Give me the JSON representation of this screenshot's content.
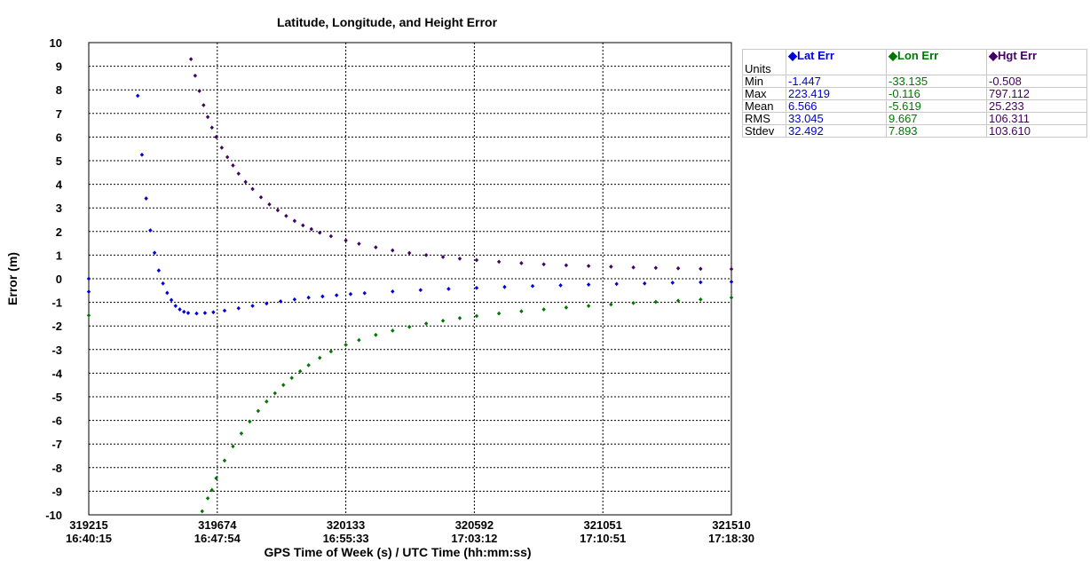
{
  "chart_data": {
    "type": "scatter",
    "title": "Latitude, Longitude, and Height Error",
    "xlabel": "GPS Time of Week (s) / UTC Time (hh:mm:ss)",
    "ylabel": "Error (m)",
    "xlim": [
      319215,
      321510
    ],
    "ylim": [
      -10,
      10
    ],
    "yticks": [
      10,
      9,
      8,
      7,
      6,
      5,
      4,
      3,
      2,
      1,
      0,
      -1,
      -2,
      -3,
      -4,
      -5,
      -6,
      -7,
      -8,
      -9,
      -10
    ],
    "xticks": [
      {
        "gps": "319215",
        "utc": "16:40:15"
      },
      {
        "gps": "319674",
        "utc": "16:47:54"
      },
      {
        "gps": "320133",
        "utc": "16:55:33"
      },
      {
        "gps": "320592",
        "utc": "17:03:12"
      },
      {
        "gps": "321051",
        "utc": "17:10:51"
      },
      {
        "gps": "321510",
        "utc": "17:18:30"
      }
    ],
    "grid": true,
    "series": [
      {
        "name": "Lat Err",
        "color": "#0000dd",
        "points": [
          [
            319215,
            0.0
          ],
          [
            319215,
            -0.55
          ],
          [
            319390,
            7.75
          ],
          [
            319405,
            5.25
          ],
          [
            319420,
            3.4
          ],
          [
            319435,
            2.05
          ],
          [
            319450,
            1.1
          ],
          [
            319465,
            0.35
          ],
          [
            319480,
            -0.2
          ],
          [
            319495,
            -0.6
          ],
          [
            319510,
            -0.9
          ],
          [
            319525,
            -1.15
          ],
          [
            319540,
            -1.3
          ],
          [
            319555,
            -1.4
          ],
          [
            319570,
            -1.45
          ],
          [
            319600,
            -1.47
          ],
          [
            319630,
            -1.45
          ],
          [
            319660,
            -1.42
          ],
          [
            319700,
            -1.35
          ],
          [
            319750,
            -1.25
          ],
          [
            319800,
            -1.15
          ],
          [
            319850,
            -1.05
          ],
          [
            319900,
            -0.96
          ],
          [
            319950,
            -0.88
          ],
          [
            320000,
            -0.8
          ],
          [
            320050,
            -0.75
          ],
          [
            320100,
            -0.7
          ],
          [
            320150,
            -0.65
          ],
          [
            320200,
            -0.61
          ],
          [
            320300,
            -0.54
          ],
          [
            320400,
            -0.48
          ],
          [
            320500,
            -0.43
          ],
          [
            320600,
            -0.39
          ],
          [
            320700,
            -0.35
          ],
          [
            320800,
            -0.31
          ],
          [
            320900,
            -0.28
          ],
          [
            321000,
            -0.25
          ],
          [
            321100,
            -0.22
          ],
          [
            321200,
            -0.2
          ],
          [
            321300,
            -0.17
          ],
          [
            321400,
            -0.15
          ],
          [
            321510,
            -0.13
          ]
        ]
      },
      {
        "name": "Lon Err",
        "color": "#007700",
        "points": [
          [
            319215,
            -1.55
          ],
          [
            319620,
            -9.85
          ],
          [
            319640,
            -9.3
          ],
          [
            319655,
            -8.95
          ],
          [
            319670,
            -8.45
          ],
          [
            319700,
            -7.7
          ],
          [
            319730,
            -7.1
          ],
          [
            319760,
            -6.55
          ],
          [
            319790,
            -6.05
          ],
          [
            319820,
            -5.6
          ],
          [
            319850,
            -5.2
          ],
          [
            319880,
            -4.85
          ],
          [
            319910,
            -4.5
          ],
          [
            319940,
            -4.2
          ],
          [
            319970,
            -3.92
          ],
          [
            320000,
            -3.66
          ],
          [
            320040,
            -3.35
          ],
          [
            320080,
            -3.08
          ],
          [
            320133,
            -2.8
          ],
          [
            320180,
            -2.6
          ],
          [
            320240,
            -2.38
          ],
          [
            320300,
            -2.2
          ],
          [
            320360,
            -2.04
          ],
          [
            320420,
            -1.9
          ],
          [
            320480,
            -1.78
          ],
          [
            320540,
            -1.67
          ],
          [
            320600,
            -1.58
          ],
          [
            320680,
            -1.47
          ],
          [
            320760,
            -1.38
          ],
          [
            320840,
            -1.3
          ],
          [
            320920,
            -1.22
          ],
          [
            321000,
            -1.15
          ],
          [
            321080,
            -1.09
          ],
          [
            321160,
            -1.03
          ],
          [
            321240,
            -0.98
          ],
          [
            321320,
            -0.93
          ],
          [
            321400,
            -0.88
          ],
          [
            321510,
            -0.8
          ]
        ]
      },
      {
        "name": "Hgt Err",
        "color": "#440066",
        "points": [
          [
            319580,
            9.3
          ],
          [
            319595,
            8.6
          ],
          [
            319610,
            7.95
          ],
          [
            319625,
            7.35
          ],
          [
            319640,
            6.85
          ],
          [
            319655,
            6.4
          ],
          [
            319670,
            6.0
          ],
          [
            319690,
            5.55
          ],
          [
            319710,
            5.15
          ],
          [
            319730,
            4.8
          ],
          [
            319750,
            4.45
          ],
          [
            319775,
            4.1
          ],
          [
            319800,
            3.8
          ],
          [
            319830,
            3.45
          ],
          [
            319860,
            3.15
          ],
          [
            319890,
            2.9
          ],
          [
            319920,
            2.66
          ],
          [
            319950,
            2.45
          ],
          [
            319980,
            2.26
          ],
          [
            320010,
            2.1
          ],
          [
            320040,
            1.95
          ],
          [
            320080,
            1.8
          ],
          [
            320133,
            1.62
          ],
          [
            320180,
            1.48
          ],
          [
            320240,
            1.33
          ],
          [
            320300,
            1.2
          ],
          [
            320360,
            1.09
          ],
          [
            320420,
            1.0
          ],
          [
            320480,
            0.92
          ],
          [
            320540,
            0.85
          ],
          [
            320600,
            0.79
          ],
          [
            320680,
            0.72
          ],
          [
            320760,
            0.66
          ],
          [
            320840,
            0.61
          ],
          [
            320920,
            0.57
          ],
          [
            321000,
            0.54
          ],
          [
            321080,
            0.51
          ],
          [
            321160,
            0.48
          ],
          [
            321240,
            0.46
          ],
          [
            321320,
            0.44
          ],
          [
            321400,
            0.42
          ],
          [
            321510,
            0.41
          ]
        ]
      }
    ]
  },
  "stats_table": {
    "units_label": "Units",
    "columns": [
      {
        "name": "Lat Err",
        "color": "#0000dd"
      },
      {
        "name": "Lon Err",
        "color": "#007700"
      },
      {
        "name": "Hgt Err",
        "color": "#440066"
      }
    ],
    "rows": [
      {
        "label": "Min",
        "lat": "-1.447",
        "lon": "-33.135",
        "hgt": "-0.508"
      },
      {
        "label": "Max",
        "lat": "223.419",
        "lon": "-0.116",
        "hgt": "797.112"
      },
      {
        "label": "Mean",
        "lat": "6.566",
        "lon": "-5.619",
        "hgt": "25.233"
      },
      {
        "label": "RMS",
        "lat": "33.045",
        "lon": "9.667",
        "hgt": "106.311"
      },
      {
        "label": "Stdev",
        "lat": "32.492",
        "lon": "7.893",
        "hgt": "103.610"
      }
    ]
  }
}
